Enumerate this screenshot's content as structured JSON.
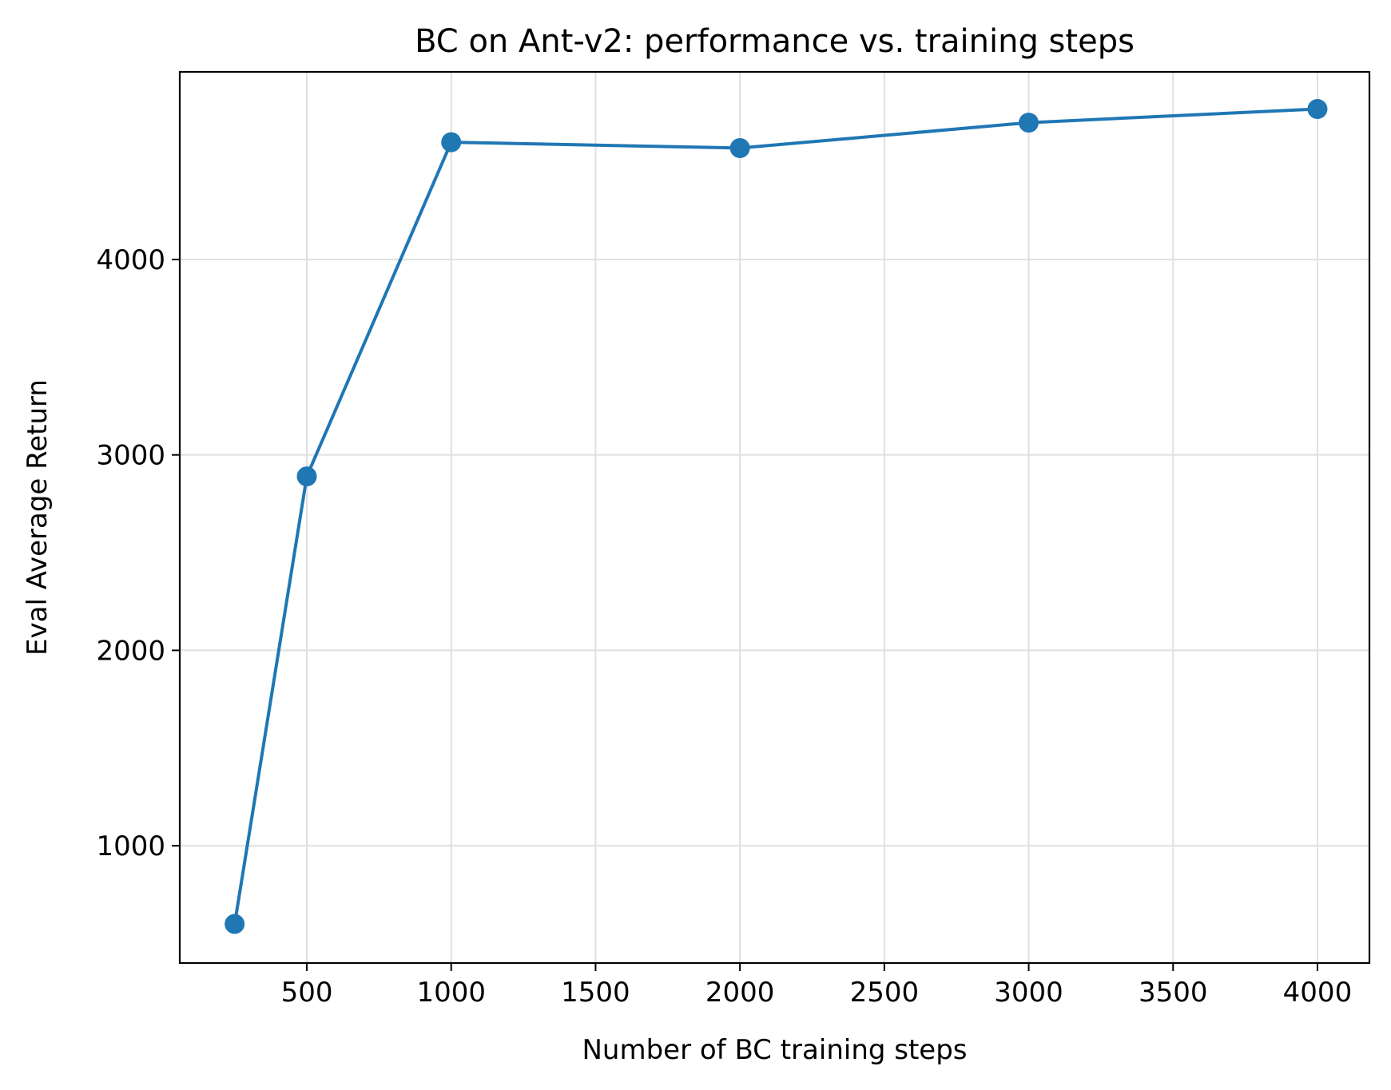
{
  "chart_data": {
    "type": "line",
    "title": "BC on Ant-v2: performance vs. training steps",
    "xlabel": "Number of BC training steps",
    "ylabel": "Eval Average Return",
    "xlim": [
      60,
      4180
    ],
    "ylim": [
      400,
      4960
    ],
    "x_ticks": [
      500,
      1000,
      1500,
      2000,
      2500,
      3000,
      3500,
      4000
    ],
    "y_ticks": [
      1000,
      2000,
      3000,
      4000
    ],
    "grid": true,
    "legend": "none",
    "series": [
      {
        "color": "#1f77b4",
        "marker": "circle",
        "x": [
          250,
          500,
          1000,
          2000,
          3000,
          4000
        ],
        "y": [
          600,
          2890,
          4600,
          4570,
          4700,
          4770
        ]
      }
    ]
  }
}
